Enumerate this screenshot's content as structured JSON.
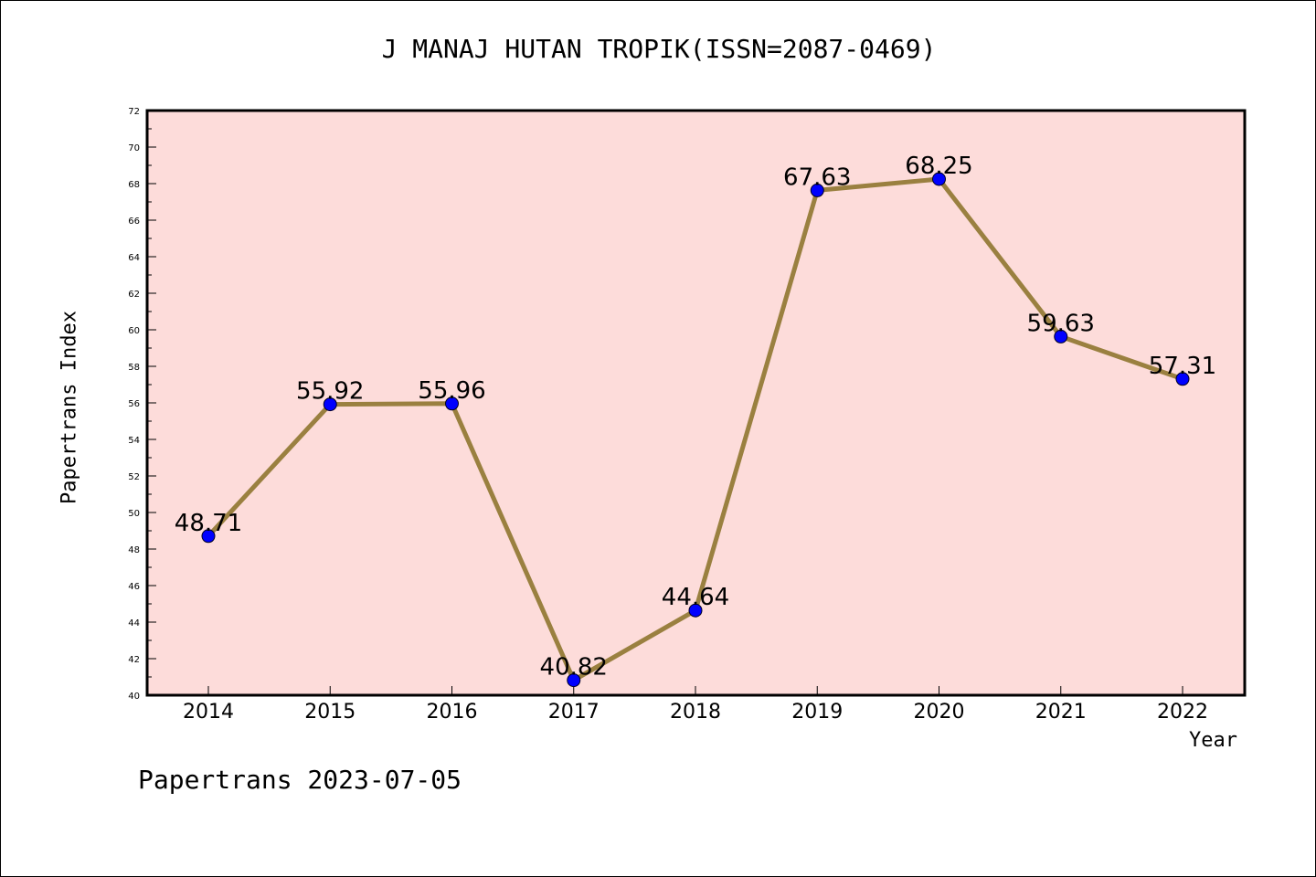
{
  "title": "J MANAJ HUTAN TROPIK(ISSN=2087-0469)",
  "footer": "Papertrans 2023-07-05",
  "colors": {
    "plot_bg": "#fddcda",
    "line": "#9a8040",
    "marker": "#0000ff"
  },
  "chart_data": {
    "type": "line",
    "xlabel": "Year",
    "ylabel": "Papertrans Index",
    "ylim": [
      40,
      72
    ],
    "y_ticks": [
      40,
      42,
      44,
      46,
      48,
      50,
      52,
      54,
      56,
      58,
      60,
      62,
      64,
      66,
      68,
      70,
      72
    ],
    "categories": [
      "2014",
      "2015",
      "2016",
      "2017",
      "2018",
      "2019",
      "2020",
      "2021",
      "2022"
    ],
    "values": [
      48.71,
      55.92,
      55.96,
      40.82,
      44.64,
      67.63,
      68.25,
      59.63,
      57.31
    ],
    "data_labels": [
      "48.71",
      "55.92",
      "55.96",
      "40.82",
      "44.64",
      "67.63",
      "68.25",
      "59.63",
      "57.31"
    ],
    "grid": false,
    "legend": "none"
  }
}
